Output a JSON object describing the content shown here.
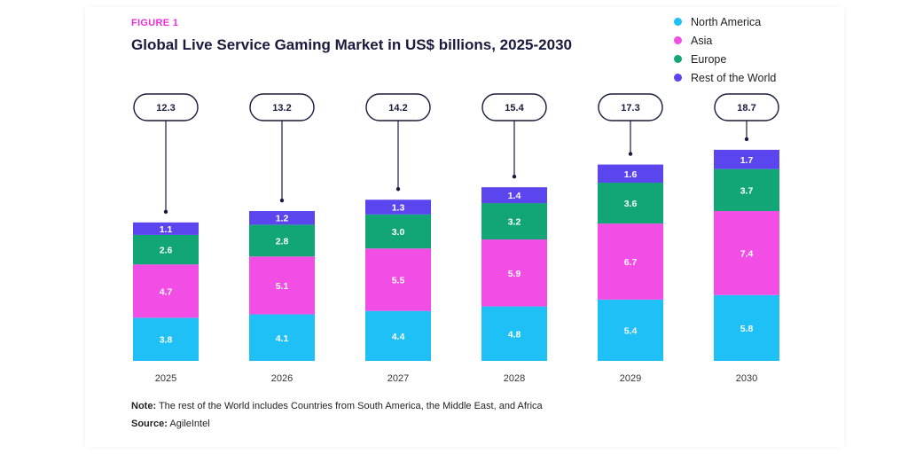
{
  "figure_label": "FIGURE 1",
  "title": "Global Live Service Gaming Market in US$ billions, 2025-2030",
  "note": {
    "label": "Note:",
    "text": " The rest of the World includes Countries from South America, the Middle East, and Africa"
  },
  "source": {
    "label": "Source:",
    "text": " AgileIntel"
  },
  "chart_data": {
    "type": "bar",
    "stacked": true,
    "title": "Global Live Service Gaming Market in US$ billions, 2025-2030",
    "xlabel": "",
    "ylabel": "",
    "categories": [
      "2025",
      "2026",
      "2027",
      "2028",
      "2029",
      "2030"
    ],
    "totals": [
      "12.3",
      "13.2",
      "14.2",
      "15.4",
      "17.3",
      "18.7"
    ],
    "series": [
      {
        "name": "North America",
        "color": "#1ec0f5",
        "values": [
          3.8,
          4.1,
          4.4,
          4.8,
          5.4,
          5.8
        ]
      },
      {
        "name": "Asia",
        "color": "#f24ee6",
        "values": [
          4.7,
          5.1,
          5.5,
          5.9,
          6.7,
          7.4
        ]
      },
      {
        "name": "Europe",
        "color": "#12a677",
        "values": [
          2.6,
          2.8,
          3.0,
          3.2,
          3.6,
          3.7
        ]
      },
      {
        "name": "Rest of the World",
        "color": "#5b45ee",
        "values": [
          1.1,
          1.2,
          1.3,
          1.4,
          1.6,
          1.7
        ]
      }
    ],
    "legend_position": "top-right",
    "grid": false
  }
}
